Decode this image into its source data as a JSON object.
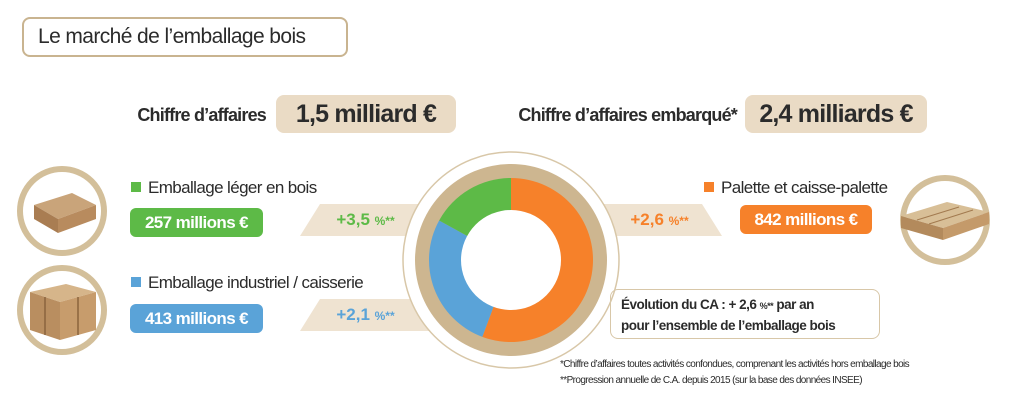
{
  "title": "Le marché de l’emballage bois",
  "headline": {
    "ca_label": "Chiffre d’affaires",
    "ca_value": "1,5 milliard €",
    "ca_embarque_label": "Chiffre d’affaires embarqué*",
    "ca_embarque_value": "2,4 milliards €"
  },
  "segments": [
    {
      "label": "Emballage léger en bois",
      "value": "257 millions €",
      "growth": "+3,5",
      "growth_unit": "%**",
      "color": "#5dba47",
      "icon": "wooden-tray-icon"
    },
    {
      "label": "Emballage industriel / caisserie",
      "value": "413 millions €",
      "growth": "+2,1",
      "growth_unit": "%**",
      "color": "#5aa3d8",
      "icon": "wooden-crate-icon"
    },
    {
      "label": "Palette et caisse-palette",
      "value": "842 millions €",
      "growth": "+2,6",
      "growth_unit": "%**",
      "color": "#f6812a",
      "icon": "pallet-icon"
    }
  ],
  "evolution": {
    "line1_a": "Évolution du CA : + 2,6 ",
    "line1_unit": "%**",
    "line1_b": " par an",
    "line2": "pour l’ensemble de l’emballage bois"
  },
  "footnotes": [
    "*Chiffre d’affaires toutes activités confondues, comprenant les activités hors emballage bois",
    "**Progression annuelle de C.A. depuis 2015 (sur la base des données INSEE)"
  ],
  "chart_data": {
    "type": "pie",
    "donut": true,
    "unit": "millions €",
    "categories": [
      "Palette et caisse-palette",
      "Emballage industriel / caisserie",
      "Emballage léger en bois"
    ],
    "values": [
      842,
      413,
      257
    ],
    "colors": [
      "#f6812a",
      "#5aa3d8",
      "#5dba47"
    ],
    "start": "top",
    "direction": "clockwise"
  }
}
